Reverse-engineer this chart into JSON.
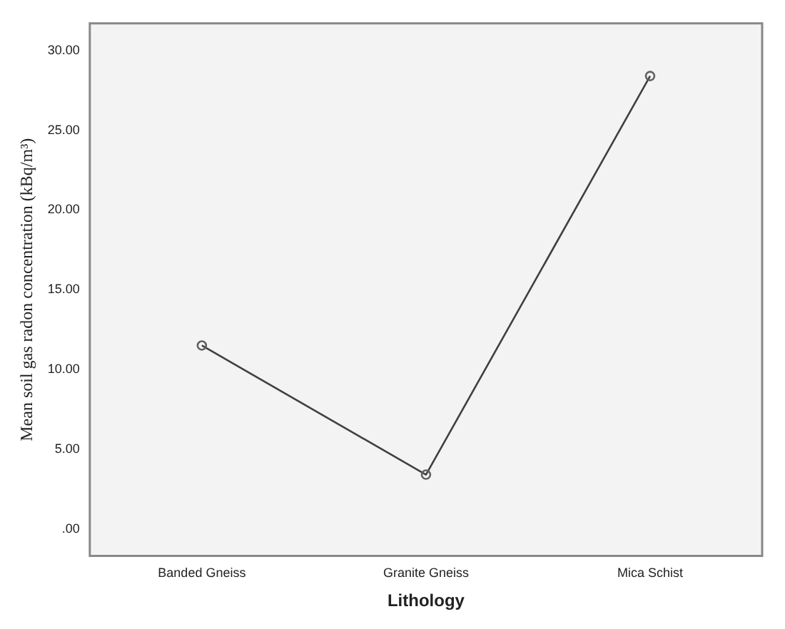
{
  "chart_data": {
    "type": "line",
    "xlabel": "Lithology",
    "ylabel": "Mean soil gas radon concentration (kBq/m³)",
    "categories": [
      "Banded Gneiss",
      "Granite Gneiss",
      "Mica Schist"
    ],
    "series": [
      {
        "color": "#404040",
        "values": [
          11.5,
          3.4,
          28.4
        ]
      }
    ],
    "ylim": [
      -1.7,
      31.7
    ],
    "yticks": [
      {
        "value": 0,
        "label": ".00"
      },
      {
        "value": 5,
        "label": "5.00"
      },
      {
        "value": 10,
        "label": "10.00"
      },
      {
        "value": 15,
        "label": "15.00"
      },
      {
        "value": 20,
        "label": "20.00"
      },
      {
        "value": 25,
        "label": "25.00"
      },
      {
        "value": 30,
        "label": "30.00"
      }
    ],
    "grid": false,
    "legend": false,
    "marker": "circle",
    "line_style": "solid"
  }
}
